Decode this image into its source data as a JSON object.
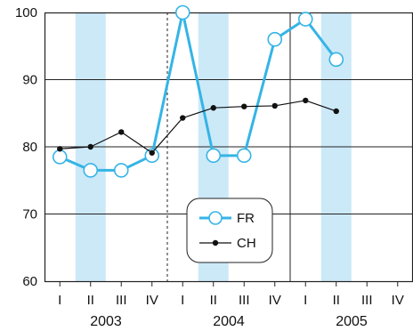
{
  "chart_data": {
    "type": "line",
    "title": "",
    "xlabel": "",
    "ylabel": "",
    "ylim": [
      60,
      100
    ],
    "yticks": [
      60,
      70,
      80,
      90,
      100
    ],
    "grid": true,
    "legend_position": "bottom-center",
    "categories": [
      "I",
      "II",
      "III",
      "IV",
      "I",
      "II",
      "III",
      "IV",
      "I",
      "II",
      "III",
      "IV"
    ],
    "years": [
      "2003",
      "2004",
      "2005"
    ],
    "highlighted_quarter_indices": [
      1,
      5,
      9
    ],
    "series": [
      {
        "name": "FR",
        "marker": "open-circle",
        "color": "#35b4e6",
        "values": [
          78.5,
          76.5,
          76.5,
          78.7,
          100,
          78.7,
          78.7,
          96,
          99,
          93,
          null,
          null
        ]
      },
      {
        "name": "CH",
        "marker": "filled-dot",
        "color": "#111111",
        "values": [
          79.7,
          80.0,
          82.2,
          79.1,
          84.3,
          85.8,
          86.0,
          86.1,
          86.9,
          85.3,
          null,
          null
        ]
      }
    ]
  },
  "style": {
    "highlight_color": "#cce9f8",
    "grid_color": "#222222",
    "fr_color": "#35b4e6",
    "ch_color": "#111111"
  }
}
